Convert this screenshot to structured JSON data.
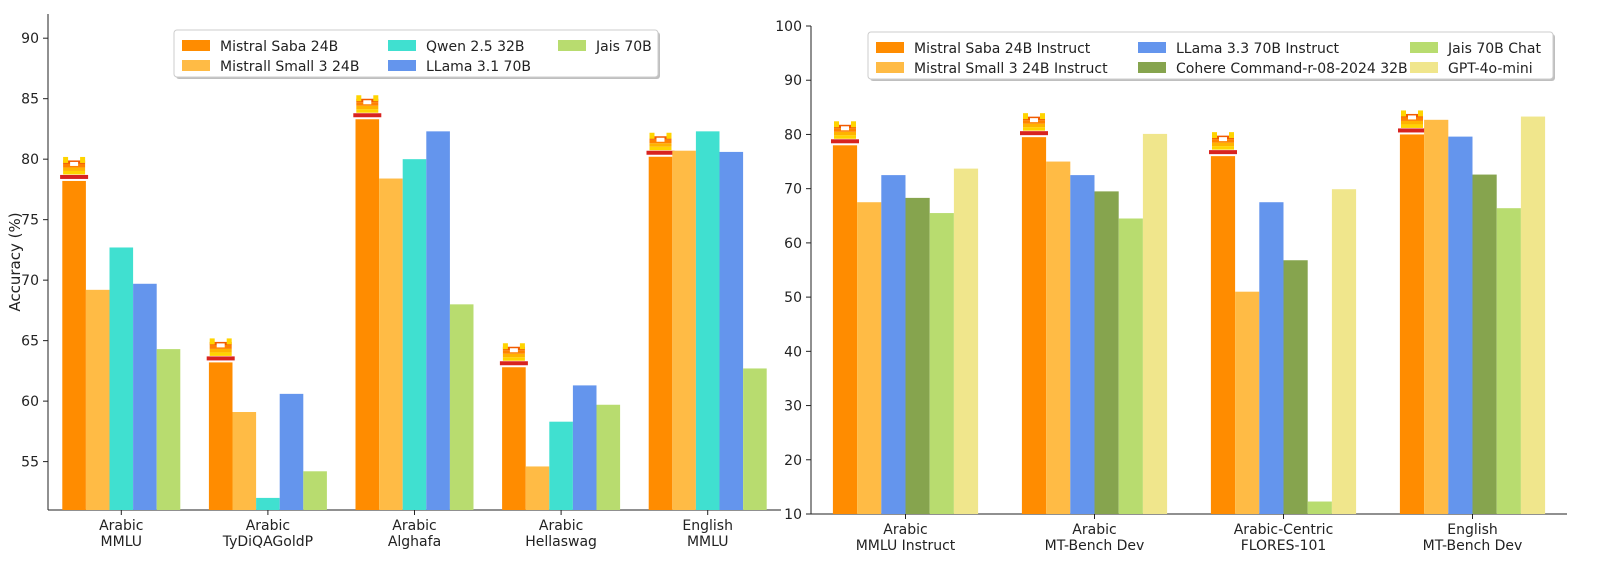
{
  "chart_data": [
    {
      "type": "bar",
      "ylabel": "Accuracy (%)",
      "ylim": [
        51,
        92
      ],
      "yticks": [
        55,
        60,
        65,
        70,
        75,
        80,
        85,
        90
      ],
      "categories": [
        "Arabic\nMMLU",
        "Arabic\nTyDiQAGoldP",
        "Arabic\nAlghafa",
        "Arabic\nHellaswag",
        "English\nMMLU"
      ],
      "series": [
        {
          "name": "Mistral Saba 24B",
          "color": "#ff8c00",
          "values": [
            78.2,
            63.2,
            83.3,
            62.8,
            80.2
          ]
        },
        {
          "name": "Mistrall Small 3 24B",
          "color": "#ffbb45",
          "values": [
            69.2,
            59.1,
            78.4,
            54.6,
            80.7
          ]
        },
        {
          "name": "Qwen 2.5 32B",
          "color": "#40e0d0",
          "values": [
            72.7,
            52.0,
            80.0,
            58.3,
            82.3
          ]
        },
        {
          "name": "LLama 3.1 70B",
          "color": "#6495ed",
          "values": [
            69.7,
            60.6,
            82.3,
            61.3,
            80.6
          ]
        },
        {
          "name": "Jais 70B",
          "color": "#b8dc6f",
          "values": [
            64.3,
            54.2,
            68.0,
            59.7,
            62.7
          ]
        }
      ],
      "legend": {
        "position": "top-center",
        "ncol": 3
      },
      "marker_series": "Mistral Saba 24B",
      "grid": false
    },
    {
      "type": "bar",
      "ylabel": "",
      "ylim": [
        10,
        100
      ],
      "yticks": [
        10,
        20,
        30,
        40,
        50,
        60,
        70,
        80,
        90,
        100
      ],
      "categories": [
        "Arabic\nMMLU Instruct",
        "Arabic\nMT-Bench Dev",
        "Arabic-Centric\nFLORES-101",
        "English\nMT-Bench Dev"
      ],
      "series": [
        {
          "name": "Mistral Saba 24B Instruct",
          "color": "#ff8c00",
          "values": [
            78.0,
            79.5,
            76.0,
            80.0
          ]
        },
        {
          "name": "Mistral Small 3 24B Instruct",
          "color": "#ffbb45",
          "values": [
            67.5,
            75.0,
            51.0,
            82.7
          ]
        },
        {
          "name": "LLama 3.3 70B Instruct",
          "color": "#6495ed",
          "values": [
            72.5,
            72.5,
            67.5,
            79.6
          ]
        },
        {
          "name": "Cohere Command-r-08-2024 32B",
          "color": "#86a44e",
          "values": [
            68.3,
            69.5,
            56.8,
            72.6
          ]
        },
        {
          "name": "Jais 70B Chat",
          "color": "#b8dc6f",
          "values": [
            65.5,
            64.5,
            12.3,
            66.4
          ]
        },
        {
          "name": "GPT-4o-mini",
          "color": "#f0e68c",
          "values": [
            73.7,
            80.1,
            69.9,
            83.3
          ]
        }
      ],
      "legend": {
        "position": "top-center",
        "ncol": 3
      },
      "marker_series": "Mistral Saba 24B Instruct",
      "grid": false
    }
  ]
}
